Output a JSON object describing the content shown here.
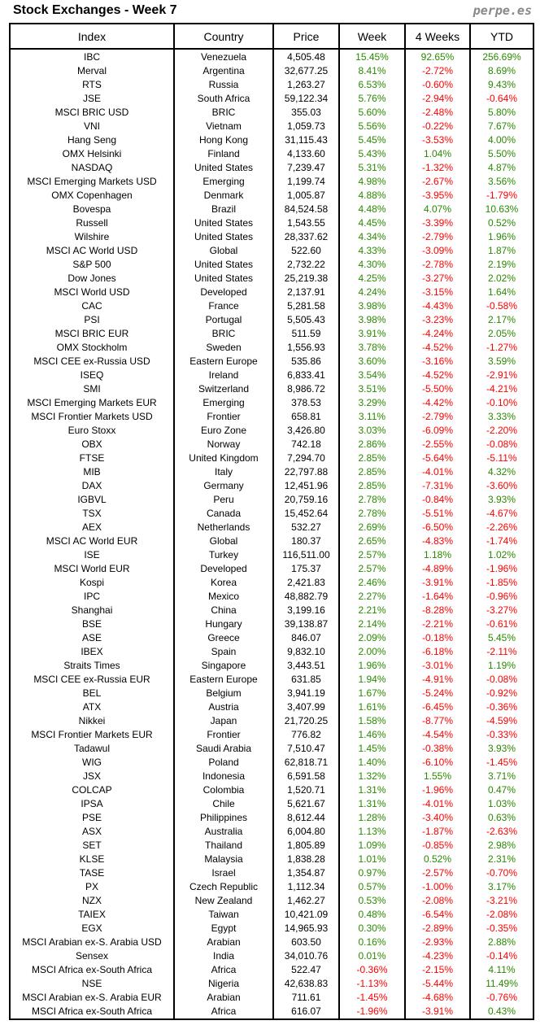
{
  "title": "Stock Exchanges - Week 7",
  "brand": "perpe.es",
  "columns": [
    "Index",
    "Country",
    "Price",
    "Week",
    "4 Weeks",
    "YTD"
  ],
  "colors": {
    "positive": "#2a8a00",
    "negative": "#ff0000"
  },
  "rows": [
    [
      "IBC",
      "Venezuela",
      "4,505.48",
      "15.45%",
      "92.65%",
      "256.69%"
    ],
    [
      "Merval",
      "Argentina",
      "32,677.25",
      "8.41%",
      "-2.72%",
      "8.69%"
    ],
    [
      "RTS",
      "Russia",
      "1,263.27",
      "6.53%",
      "-0.60%",
      "9.43%"
    ],
    [
      "JSE",
      "South Africa",
      "59,122.34",
      "5.76%",
      "-2.94%",
      "-0.64%"
    ],
    [
      "MSCI BRIC USD",
      "BRIC",
      "355.03",
      "5.60%",
      "-2.48%",
      "5.80%"
    ],
    [
      "VNI",
      "Vietnam",
      "1,059.73",
      "5.56%",
      "-0.22%",
      "7.67%"
    ],
    [
      "Hang Seng",
      "Hong Kong",
      "31,115.43",
      "5.45%",
      "-3.53%",
      "4.00%"
    ],
    [
      "OMX Helsinki",
      "Finland",
      "4,133.60",
      "5.43%",
      "1.04%",
      "5.50%"
    ],
    [
      "NASDAQ",
      "United States",
      "7,239.47",
      "5.31%",
      "-1.32%",
      "4.87%"
    ],
    [
      "MSCI Emerging Markets USD",
      "Emerging",
      "1,199.74",
      "4.98%",
      "-2.67%",
      "3.56%"
    ],
    [
      "OMX Copenhagen",
      "Denmark",
      "1,005.87",
      "4.88%",
      "-3.95%",
      "-1.79%"
    ],
    [
      "Bovespa",
      "Brazil",
      "84,524.58",
      "4.48%",
      "4.07%",
      "10.63%"
    ],
    [
      "Russell",
      "United States",
      "1,543.55",
      "4.45%",
      "-3.39%",
      "0.52%"
    ],
    [
      "Wilshire",
      "United States",
      "28,337.62",
      "4.34%",
      "-2.79%",
      "1.96%"
    ],
    [
      "MSCI AC World USD",
      "Global",
      "522.60",
      "4.33%",
      "-3.09%",
      "1.87%"
    ],
    [
      "S&P 500",
      "United States",
      "2,732.22",
      "4.30%",
      "-2.78%",
      "2.19%"
    ],
    [
      "Dow Jones",
      "United States",
      "25,219.38",
      "4.25%",
      "-3.27%",
      "2.02%"
    ],
    [
      "MSCI World USD",
      "Developed",
      "2,137.91",
      "4.24%",
      "-3.15%",
      "1.64%"
    ],
    [
      "CAC",
      "France",
      "5,281.58",
      "3.98%",
      "-4.43%",
      "-0.58%"
    ],
    [
      "PSI",
      "Portugal",
      "5,505.43",
      "3.98%",
      "-3.23%",
      "2.17%"
    ],
    [
      "MSCI BRIC EUR",
      "BRIC",
      "511.59",
      "3.91%",
      "-4.24%",
      "2.05%"
    ],
    [
      "OMX Stockholm",
      "Sweden",
      "1,556.93",
      "3.78%",
      "-4.52%",
      "-1.27%"
    ],
    [
      "MSCI CEE ex-Russia USD",
      "Eastern Europe",
      "535.86",
      "3.60%",
      "-3.16%",
      "3.59%"
    ],
    [
      "ISEQ",
      "Ireland",
      "6,833.41",
      "3.54%",
      "-4.52%",
      "-2.91%"
    ],
    [
      "SMI",
      "Switzerland",
      "8,986.72",
      "3.51%",
      "-5.50%",
      "-4.21%"
    ],
    [
      "MSCI Emerging Markets EUR",
      "Emerging",
      "378.53",
      "3.29%",
      "-4.42%",
      "-0.10%"
    ],
    [
      "MSCI Frontier Markets USD",
      "Frontier",
      "658.81",
      "3.11%",
      "-2.79%",
      "3.33%"
    ],
    [
      "Euro Stoxx",
      "Euro Zone",
      "3,426.80",
      "3.03%",
      "-6.09%",
      "-2.20%"
    ],
    [
      "OBX",
      "Norway",
      "742.18",
      "2.86%",
      "-2.55%",
      "-0.08%"
    ],
    [
      "FTSE",
      "United Kingdom",
      "7,294.70",
      "2.85%",
      "-5.64%",
      "-5.11%"
    ],
    [
      "MIB",
      "Italy",
      "22,797.88",
      "2.85%",
      "-4.01%",
      "4.32%"
    ],
    [
      "DAX",
      "Germany",
      "12,451.96",
      "2.85%",
      "-7.31%",
      "-3.60%"
    ],
    [
      "IGBVL",
      "Peru",
      "20,759.16",
      "2.78%",
      "-0.84%",
      "3.93%"
    ],
    [
      "TSX",
      "Canada",
      "15,452.64",
      "2.78%",
      "-5.51%",
      "-4.67%"
    ],
    [
      "AEX",
      "Netherlands",
      "532.27",
      "2.69%",
      "-6.50%",
      "-2.26%"
    ],
    [
      "MSCI AC World EUR",
      "Global",
      "180.37",
      "2.65%",
      "-4.83%",
      "-1.74%"
    ],
    [
      "ISE",
      "Turkey",
      "116,511.00",
      "2.57%",
      "1.18%",
      "1.02%"
    ],
    [
      "MSCI World EUR",
      "Developed",
      "175.37",
      "2.57%",
      "-4.89%",
      "-1.96%"
    ],
    [
      "Kospi",
      "Korea",
      "2,421.83",
      "2.46%",
      "-3.91%",
      "-1.85%"
    ],
    [
      "IPC",
      "Mexico",
      "48,882.79",
      "2.27%",
      "-1.64%",
      "-0.96%"
    ],
    [
      "Shanghai",
      "China",
      "3,199.16",
      "2.21%",
      "-8.28%",
      "-3.27%"
    ],
    [
      "BSE",
      "Hungary",
      "39,138.87",
      "2.14%",
      "-2.21%",
      "-0.61%"
    ],
    [
      "ASE",
      "Greece",
      "846.07",
      "2.09%",
      "-0.18%",
      "5.45%"
    ],
    [
      "IBEX",
      "Spain",
      "9,832.10",
      "2.00%",
      "-6.18%",
      "-2.11%"
    ],
    [
      "Straits Times",
      "Singapore",
      "3,443.51",
      "1.96%",
      "-3.01%",
      "1.19%"
    ],
    [
      "MSCI CEE ex-Russia EUR",
      "Eastern Europe",
      "631.85",
      "1.94%",
      "-4.91%",
      "-0.08%"
    ],
    [
      "BEL",
      "Belgium",
      "3,941.19",
      "1.67%",
      "-5.24%",
      "-0.92%"
    ],
    [
      "ATX",
      "Austria",
      "3,407.99",
      "1.61%",
      "-6.45%",
      "-0.36%"
    ],
    [
      "Nikkei",
      "Japan",
      "21,720.25",
      "1.58%",
      "-8.77%",
      "-4.59%"
    ],
    [
      "MSCI Frontier Markets EUR",
      "Frontier",
      "776.82",
      "1.46%",
      "-4.54%",
      "-0.33%"
    ],
    [
      "Tadawul",
      "Saudi Arabia",
      "7,510.47",
      "1.45%",
      "-0.38%",
      "3.93%"
    ],
    [
      "WIG",
      "Poland",
      "62,818.71",
      "1.40%",
      "-6.10%",
      "-1.45%"
    ],
    [
      "JSX",
      "Indonesia",
      "6,591.58",
      "1.32%",
      "1.55%",
      "3.71%"
    ],
    [
      "COLCAP",
      "Colombia",
      "1,520.71",
      "1.31%",
      "-1.96%",
      "0.47%"
    ],
    [
      "IPSA",
      "Chile",
      "5,621.67",
      "1.31%",
      "-4.01%",
      "1.03%"
    ],
    [
      "PSE",
      "Philippines",
      "8,612.44",
      "1.28%",
      "-3.40%",
      "0.63%"
    ],
    [
      "ASX",
      "Australia",
      "6,004.80",
      "1.13%",
      "-1.87%",
      "-2.63%"
    ],
    [
      "SET",
      "Thailand",
      "1,805.89",
      "1.09%",
      "-0.85%",
      "2.98%"
    ],
    [
      "KLSE",
      "Malaysia",
      "1,838.28",
      "1.01%",
      "0.52%",
      "2.31%"
    ],
    [
      "TASE",
      "Israel",
      "1,354.87",
      "0.97%",
      "-2.57%",
      "-0.70%"
    ],
    [
      "PX",
      "Czech Republic",
      "1,112.34",
      "0.57%",
      "-1.00%",
      "3.17%"
    ],
    [
      "NZX",
      "New Zealand",
      "1,462.27",
      "0.53%",
      "-2.08%",
      "-3.21%"
    ],
    [
      "TAIEX",
      "Taiwan",
      "10,421.09",
      "0.48%",
      "-6.54%",
      "-2.08%"
    ],
    [
      "EGX",
      "Egypt",
      "14,965.93",
      "0.30%",
      "-2.89%",
      "-0.35%"
    ],
    [
      "MSCI Arabian ex-S. Arabia USD",
      "Arabian",
      "603.50",
      "0.16%",
      "-2.93%",
      "2.88%"
    ],
    [
      "Sensex",
      "India",
      "34,010.76",
      "0.01%",
      "-4.23%",
      "-0.14%"
    ],
    [
      "MSCI Africa ex-South Africa",
      "Africa",
      "522.47",
      "-0.36%",
      "-2.15%",
      "4.11%"
    ],
    [
      "NSE",
      "Nigeria",
      "42,638.83",
      "-1.13%",
      "-5.44%",
      "11.49%"
    ],
    [
      "MSCI Arabian ex-S. Arabia EUR",
      "Arabian",
      "711.61",
      "-1.45%",
      "-4.68%",
      "-0.76%"
    ],
    [
      "MSCI Africa ex-South Africa",
      "Africa",
      "616.07",
      "-1.96%",
      "-3.91%",
      "0.43%"
    ]
  ]
}
